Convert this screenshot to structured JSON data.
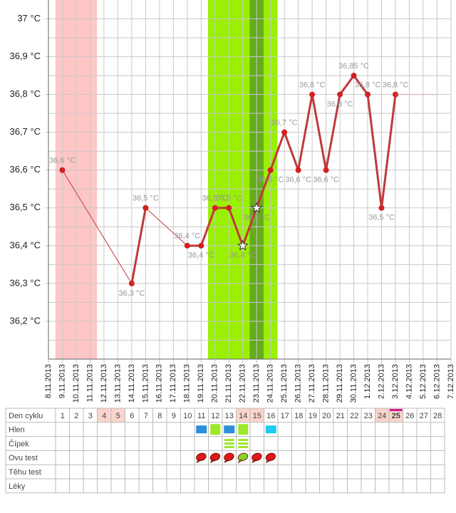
{
  "chart_data": {
    "type": "line",
    "categories": [
      "8.11.2013",
      "9.11.2013",
      "10.11.2013",
      "11.11.2013",
      "12.11.2013",
      "13.11.2013",
      "14.11.2013",
      "15.11.2013",
      "16.11.2013",
      "17.11.2013",
      "18.11.2013",
      "19.11.2013",
      "20.11.2013",
      "21.11.2013",
      "22.11.2013",
      "23.11.2013",
      "24.11.2013",
      "25.11.2013",
      "26.11.2013",
      "27.11.2013",
      "28.11.2013",
      "29.11.2013",
      "30.11.2013",
      "1.12.2013",
      "2.12.2013",
      "3.12.2013",
      "4.12.2013",
      "5.12.2013",
      "6.12.2013",
      "7.12.2013"
    ],
    "series": [
      {
        "color": "#c0393b",
        "values": [
          null,
          36.6,
          null,
          null,
          null,
          null,
          36.3,
          36.5,
          null,
          null,
          36.4,
          36.4,
          36.5,
          36.5,
          36.4,
          36.5,
          36.6,
          36.7,
          36.6,
          36.8,
          36.6,
          36.8,
          36.85,
          36.8,
          36.5,
          36.8,
          null,
          null,
          null,
          null
        ],
        "value_labels": [
          null,
          "36,6 °C",
          null,
          null,
          null,
          null,
          "36,3 °C",
          "36,5 °C",
          null,
          null,
          "36,4 °C",
          "36,4 °C",
          "36,5 °C",
          "36,5 °C",
          "36,4 °C",
          "36,5 °C",
          "36,6 °C",
          "36,7 °C",
          "36,6 °C",
          "36,8 °C",
          "36,6 °C",
          "36,8 °C",
          "36,85 °C",
          "36,8 °C",
          "36,5 °C",
          "36,8 °C",
          null,
          null,
          null,
          null
        ]
      },
      {
        "color": "#d98a8a",
        "dotted": true,
        "values": [
          null,
          null,
          null,
          null,
          null,
          null,
          null,
          null,
          null,
          null,
          null,
          null,
          null,
          null,
          null,
          null,
          null,
          null,
          null,
          null,
          null,
          null,
          null,
          null,
          null,
          36.8,
          36.8,
          36.8,
          36.8,
          null
        ]
      }
    ],
    "star_dates": [
      "22.11.2013",
      "23.11.2013"
    ],
    "bands": [
      {
        "from": "9.11.2013",
        "to": "11.11.2013",
        "color": "#ffc6c6"
      },
      {
        "from": "20.11.2013",
        "to": "24.11.2013",
        "color": "#99f000"
      },
      {
        "from": "23.11.2013",
        "to": "23.11.2013",
        "color": "#66aa1e"
      }
    ],
    "ylim": [
      36.1,
      37.05
    ],
    "yticks": [
      {
        "value": 36.2,
        "label": "36,2 °C"
      },
      {
        "value": 36.3,
        "label": "36,3 °C"
      },
      {
        "value": 36.4,
        "label": "36,4 °C"
      },
      {
        "value": 36.5,
        "label": "36,5 °C"
      },
      {
        "value": 36.6,
        "label": "36,6 °C"
      },
      {
        "value": 36.7,
        "label": "36,7 °C"
      },
      {
        "value": 36.8,
        "label": "36,8 °C"
      },
      {
        "value": 36.9,
        "label": "36,9 °C"
      },
      {
        "value": 37,
        "label": "37 °C"
      }
    ],
    "minor_yticks": [
      36.15,
      36.25,
      36.35,
      36.45,
      36.55,
      36.65,
      36.75,
      36.85,
      36.95
    ],
    "grid": true
  },
  "cycle_table": {
    "header": "Den cyklu",
    "days": [
      1,
      2,
      3,
      4,
      5,
      6,
      7,
      8,
      9,
      10,
      11,
      12,
      13,
      14,
      15,
      16,
      17,
      18,
      19,
      20,
      21,
      22,
      23,
      24,
      25,
      26,
      27,
      28
    ],
    "shaded_days": [
      4,
      5,
      14,
      15,
      24,
      25
    ],
    "today": 25,
    "rows": [
      {
        "label": "Hlen",
        "kind": "box",
        "marks": [
          null,
          null,
          null,
          null,
          null,
          null,
          null,
          null,
          null,
          null,
          "#2a8fd8",
          "#9be82a",
          "#2a8fd8",
          "#9be82a",
          null,
          "#1ccbf0",
          null,
          null,
          null,
          null,
          null,
          null,
          null,
          null,
          null,
          null,
          null,
          null
        ]
      },
      {
        "label": "Čípek",
        "kind": "stripes",
        "marks": [
          null,
          null,
          null,
          null,
          null,
          null,
          null,
          null,
          null,
          null,
          null,
          null,
          "#9be82a",
          "#9be82a",
          null,
          null,
          null,
          null,
          null,
          null,
          null,
          null,
          null,
          null,
          null,
          null,
          null,
          null
        ]
      },
      {
        "label": "Ovu test",
        "kind": "leaf",
        "marks": [
          null,
          null,
          null,
          null,
          null,
          null,
          null,
          null,
          null,
          null,
          "#e01818",
          "#e01818",
          "#e01818",
          "#8ad22a",
          "#e01818",
          "#e01818",
          null,
          null,
          null,
          null,
          null,
          null,
          null,
          null,
          null,
          null,
          null,
          null
        ]
      },
      {
        "label": "Těhu test",
        "kind": "none",
        "marks": []
      },
      {
        "label": "Léky",
        "kind": "none",
        "marks": []
      }
    ]
  }
}
